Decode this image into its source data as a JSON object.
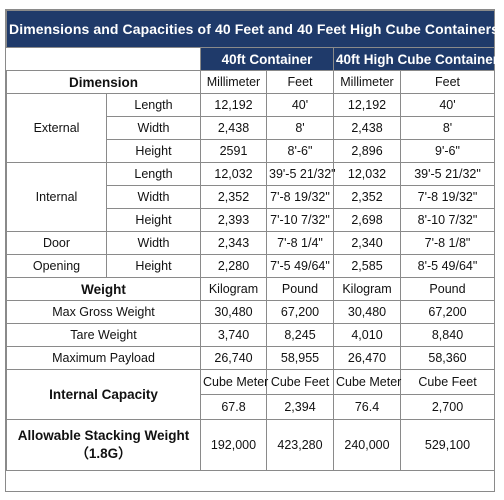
{
  "title": "Dimensions and Capacities of 40 Feet and 40 Feet High Cube Containers:",
  "headers": {
    "container_40ft": "40ft Container",
    "container_40hc": "40ft High Cube Container"
  },
  "dimension_label": "Dimension",
  "units_dimension": [
    "Millimeter",
    "Feet",
    "Millimeter",
    "Feet"
  ],
  "external": {
    "label": "External",
    "rows": [
      {
        "label": "Length",
        "values": [
          "12,192",
          "40'",
          "12,192",
          "40'"
        ]
      },
      {
        "label": "Width",
        "values": [
          "2,438",
          "8'",
          "2,438",
          "8'"
        ]
      },
      {
        "label": "Height",
        "values": [
          "2591",
          "8'-6\"",
          "2,896",
          "9'-6\""
        ]
      }
    ]
  },
  "internal": {
    "label": "Internal",
    "rows": [
      {
        "label": "Length",
        "values": [
          "12,032",
          "39'-5 21/32\"",
          "12,032",
          "39'-5 21/32\""
        ]
      },
      {
        "label": "Width",
        "values": [
          "2,352",
          "7'-8 19/32\"",
          "2,352",
          "7'-8 19/32\""
        ]
      },
      {
        "label": "Height",
        "values": [
          "2,393",
          "7'-10 7/32\"",
          "2,698",
          "8'-10 7/32\""
        ]
      }
    ]
  },
  "door_opening": {
    "label_top": "Door",
    "label_bottom": "Opening",
    "rows": [
      {
        "label": "Width",
        "values": [
          "2,343",
          "7'-8 1/4\"",
          "2,340",
          "7'-8 1/8\""
        ]
      },
      {
        "label": "Height",
        "values": [
          "2,280",
          "7'-5 49/64\"",
          "2,585",
          "8'-5 49/64\""
        ]
      }
    ]
  },
  "weight_label": "Weight",
  "units_weight": [
    "Kilogram",
    "Pound",
    "Kilogram",
    "Pound"
  ],
  "weights": [
    {
      "label": "Max Gross Weight",
      "values": [
        "30,480",
        "67,200",
        "30,480",
        "67,200"
      ]
    },
    {
      "label": "Tare Weight",
      "values": [
        "3,740",
        "8,245",
        "4,010",
        "8,840"
      ]
    },
    {
      "label": "Maximum Payload",
      "values": [
        "26,740",
        "58,955",
        "26,470",
        "58,360"
      ]
    }
  ],
  "capacity": {
    "label": "Internal Capacity",
    "units": [
      "Cube Meter",
      "Cube Feet",
      "Cube Meter",
      "Cube Feet"
    ],
    "values": [
      "67.8",
      "2,394",
      "76.4",
      "2,700"
    ]
  },
  "stacking": {
    "label": "Allowable Stacking Weight（1.8G）",
    "values": [
      "192,000",
      "423,280",
      "240,000",
      "529,100"
    ]
  }
}
